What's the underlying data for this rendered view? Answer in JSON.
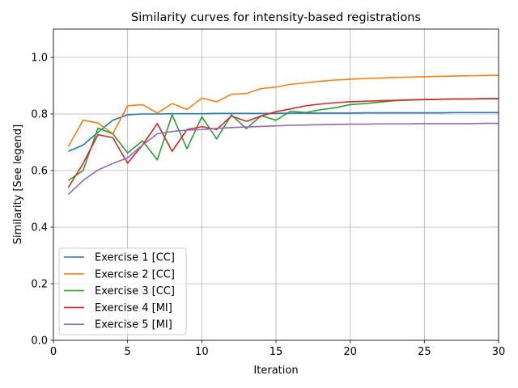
{
  "chart_data": {
    "type": "line",
    "title": "Similarity curves for intensity-based registrations",
    "xlabel": "Iteration",
    "ylabel": "Similarity [See legend]",
    "xlim": [
      0,
      30
    ],
    "ylim": [
      0,
      1.1
    ],
    "xticks": [
      0,
      5,
      10,
      15,
      20,
      25,
      30
    ],
    "yticks": [
      0.0,
      0.2,
      0.4,
      0.6,
      0.8,
      1.0
    ],
    "xtick_labels": [
      "0",
      "5",
      "10",
      "15",
      "20",
      "25",
      "30"
    ],
    "ytick_labels": [
      "0.0",
      "0.2",
      "0.4",
      "0.6",
      "0.8",
      "1.0"
    ],
    "grid": true,
    "legend_position": "lower-left",
    "x": [
      1,
      2,
      3,
      4,
      5,
      6,
      7,
      8,
      9,
      10,
      11,
      12,
      13,
      14,
      15,
      16,
      17,
      18,
      19,
      20,
      21,
      22,
      23,
      24,
      25,
      26,
      27,
      28,
      29,
      30
    ],
    "series": [
      {
        "name": "Exercise 1 [CC]",
        "color": "#1f77b4",
        "values": [
          0.668,
          0.69,
          0.735,
          0.778,
          0.797,
          0.8,
          0.8,
          0.801,
          0.801,
          0.801,
          0.802,
          0.802,
          0.802,
          0.802,
          0.802,
          0.803,
          0.803,
          0.803,
          0.803,
          0.803,
          0.804,
          0.804,
          0.804,
          0.804,
          0.804,
          0.804,
          0.805,
          0.805,
          0.805,
          0.805
        ]
      },
      {
        "name": "Exercise 2 [CC]",
        "color": "#ff7f0e",
        "values": [
          0.685,
          0.778,
          0.768,
          0.73,
          0.829,
          0.833,
          0.803,
          0.837,
          0.816,
          0.856,
          0.843,
          0.87,
          0.872,
          0.89,
          0.895,
          0.905,
          0.91,
          0.916,
          0.92,
          0.923,
          0.925,
          0.927,
          0.929,
          0.93,
          0.932,
          0.933,
          0.934,
          0.935,
          0.936,
          0.937
        ]
      },
      {
        "name": "Exercise 3 [CC]",
        "color": "#2ca02c",
        "values": [
          0.565,
          0.6,
          0.75,
          0.73,
          0.662,
          0.705,
          0.638,
          0.797,
          0.677,
          0.79,
          0.712,
          0.797,
          0.748,
          0.794,
          0.778,
          0.81,
          0.805,
          0.815,
          0.822,
          0.833,
          0.837,
          0.842,
          0.847,
          0.849,
          0.851,
          0.852,
          0.853,
          0.853,
          0.854,
          0.854
        ]
      },
      {
        "name": "Exercise 4 [MI]",
        "color": "#d62728",
        "values": [
          0.54,
          0.625,
          0.727,
          0.716,
          0.626,
          0.69,
          0.766,
          0.668,
          0.745,
          0.755,
          0.745,
          0.793,
          0.774,
          0.793,
          0.808,
          0.818,
          0.829,
          0.835,
          0.84,
          0.843,
          0.845,
          0.847,
          0.848,
          0.85,
          0.851,
          0.852,
          0.853,
          0.853,
          0.854,
          0.854
        ]
      },
      {
        "name": "Exercise 5 [MI]",
        "color": "#9467bd",
        "values": [
          0.516,
          0.565,
          0.602,
          0.625,
          0.645,
          0.69,
          0.73,
          0.738,
          0.743,
          0.745,
          0.749,
          0.752,
          0.754,
          0.756,
          0.758,
          0.76,
          0.761,
          0.762,
          0.763,
          0.764,
          0.764,
          0.765,
          0.765,
          0.765,
          0.766,
          0.766,
          0.766,
          0.766,
          0.767,
          0.767
        ]
      }
    ]
  }
}
